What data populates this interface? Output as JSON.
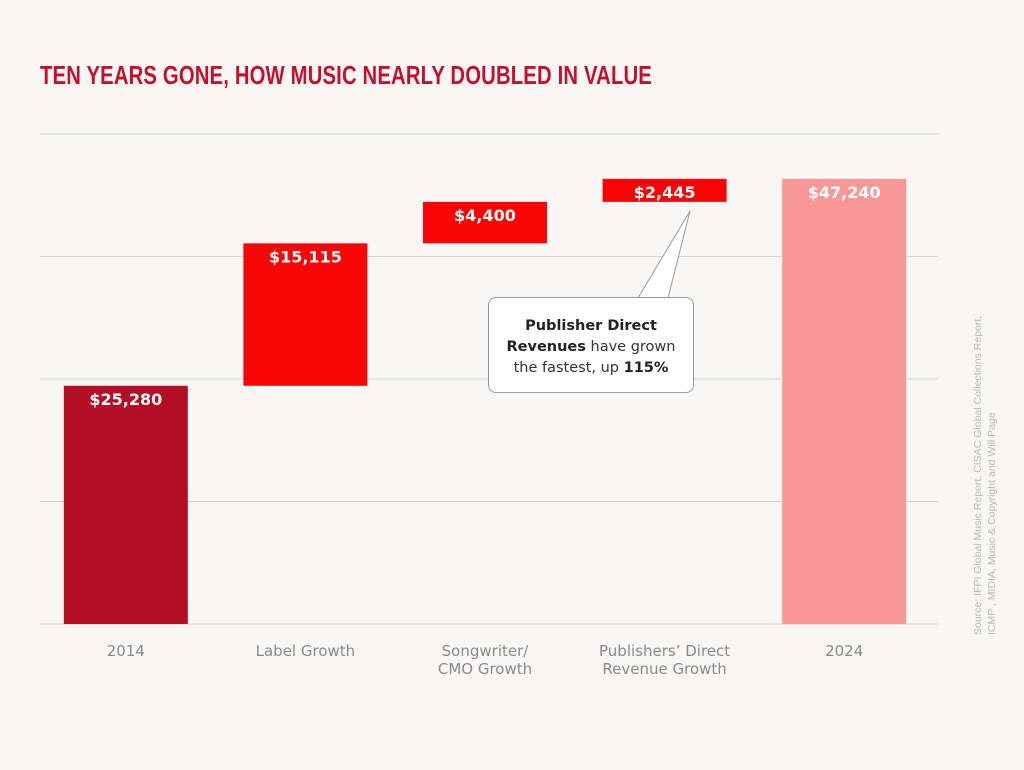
{
  "chart_data": {
    "type": "bar",
    "subtype": "waterfall",
    "title": "TEN YEARS GONE, HOW MUSIC NEARLY DOUBLED IN VALUE",
    "categories": [
      "2014",
      "Label Growth",
      "Songwriter/\nCMO Growth",
      "Publishers’ Direct\nRevenue Growth",
      "2024"
    ],
    "values": [
      25280,
      15115,
      4400,
      2445,
      47240
    ],
    "kinds": [
      "total",
      "increase",
      "increase",
      "increase",
      "total"
    ],
    "data_labels": [
      "$25,280",
      "$15,115",
      "$4,400",
      "$2,445",
      "$47,240"
    ],
    "colors": [
      "#b50d24",
      "#fa0505",
      "#fa0505",
      "#fa0505",
      "#f99696"
    ],
    "ylim": [
      0,
      52000
    ],
    "grid": true,
    "xlabel": "",
    "ylabel": "",
    "annotation": {
      "bold1": "Publisher Direct",
      "bold2": "Revenues",
      "text2": " have grown",
      "text3": "the fastest, up ",
      "bold3": "115%"
    },
    "source": "Source: IFPI Global Music Report, CISAC Global Collections Report, ICMP , MIDIA, Music & Copyright and Will Page"
  }
}
